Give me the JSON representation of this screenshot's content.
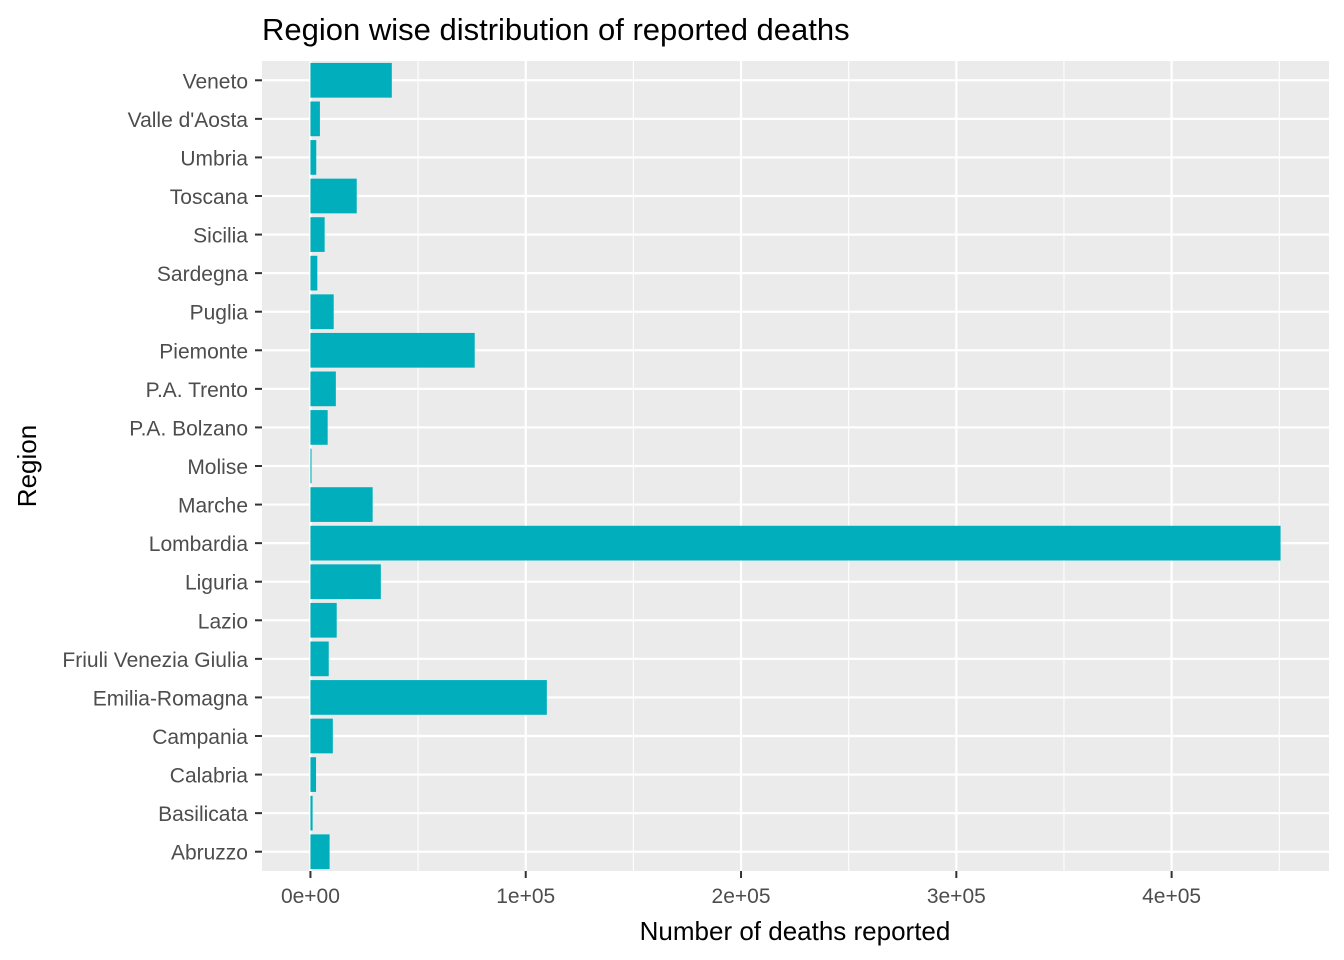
{
  "chart_data": {
    "type": "bar",
    "orientation": "horizontal",
    "title": "Region wise distribution of reported deaths",
    "xlabel": "Number of deaths reported",
    "ylabel": "Region",
    "categories": [
      "Abruzzo",
      "Basilicata",
      "Calabria",
      "Campania",
      "Emilia-Romagna",
      "Friuli Venezia Giulia",
      "Lazio",
      "Liguria",
      "Lombardia",
      "Marche",
      "Molise",
      "P.A. Bolzano",
      "P.A. Trento",
      "Piemonte",
      "Puglia",
      "Sardegna",
      "Sicilia",
      "Toscana",
      "Umbria",
      "Valle d'Aosta",
      "Veneto"
    ],
    "values": [
      8900,
      1000,
      2600,
      10400,
      109800,
      8500,
      12200,
      32700,
      450600,
      28900,
      500,
      8000,
      11800,
      76300,
      10800,
      3200,
      6600,
      21500,
      2700,
      4400,
      37800
    ],
    "xlim": [
      -22500,
      473100
    ],
    "x_ticks": [
      0,
      100000,
      200000,
      300000,
      400000
    ],
    "x_tick_labels": [
      "0e+00",
      "1e+05",
      "2e+05",
      "3e+05",
      "4e+05"
    ],
    "bar_color": "#00AFBB",
    "panel_background": "#EBEBEB",
    "grid_color": "#FFFFFF",
    "grid": true,
    "legend": "none"
  }
}
